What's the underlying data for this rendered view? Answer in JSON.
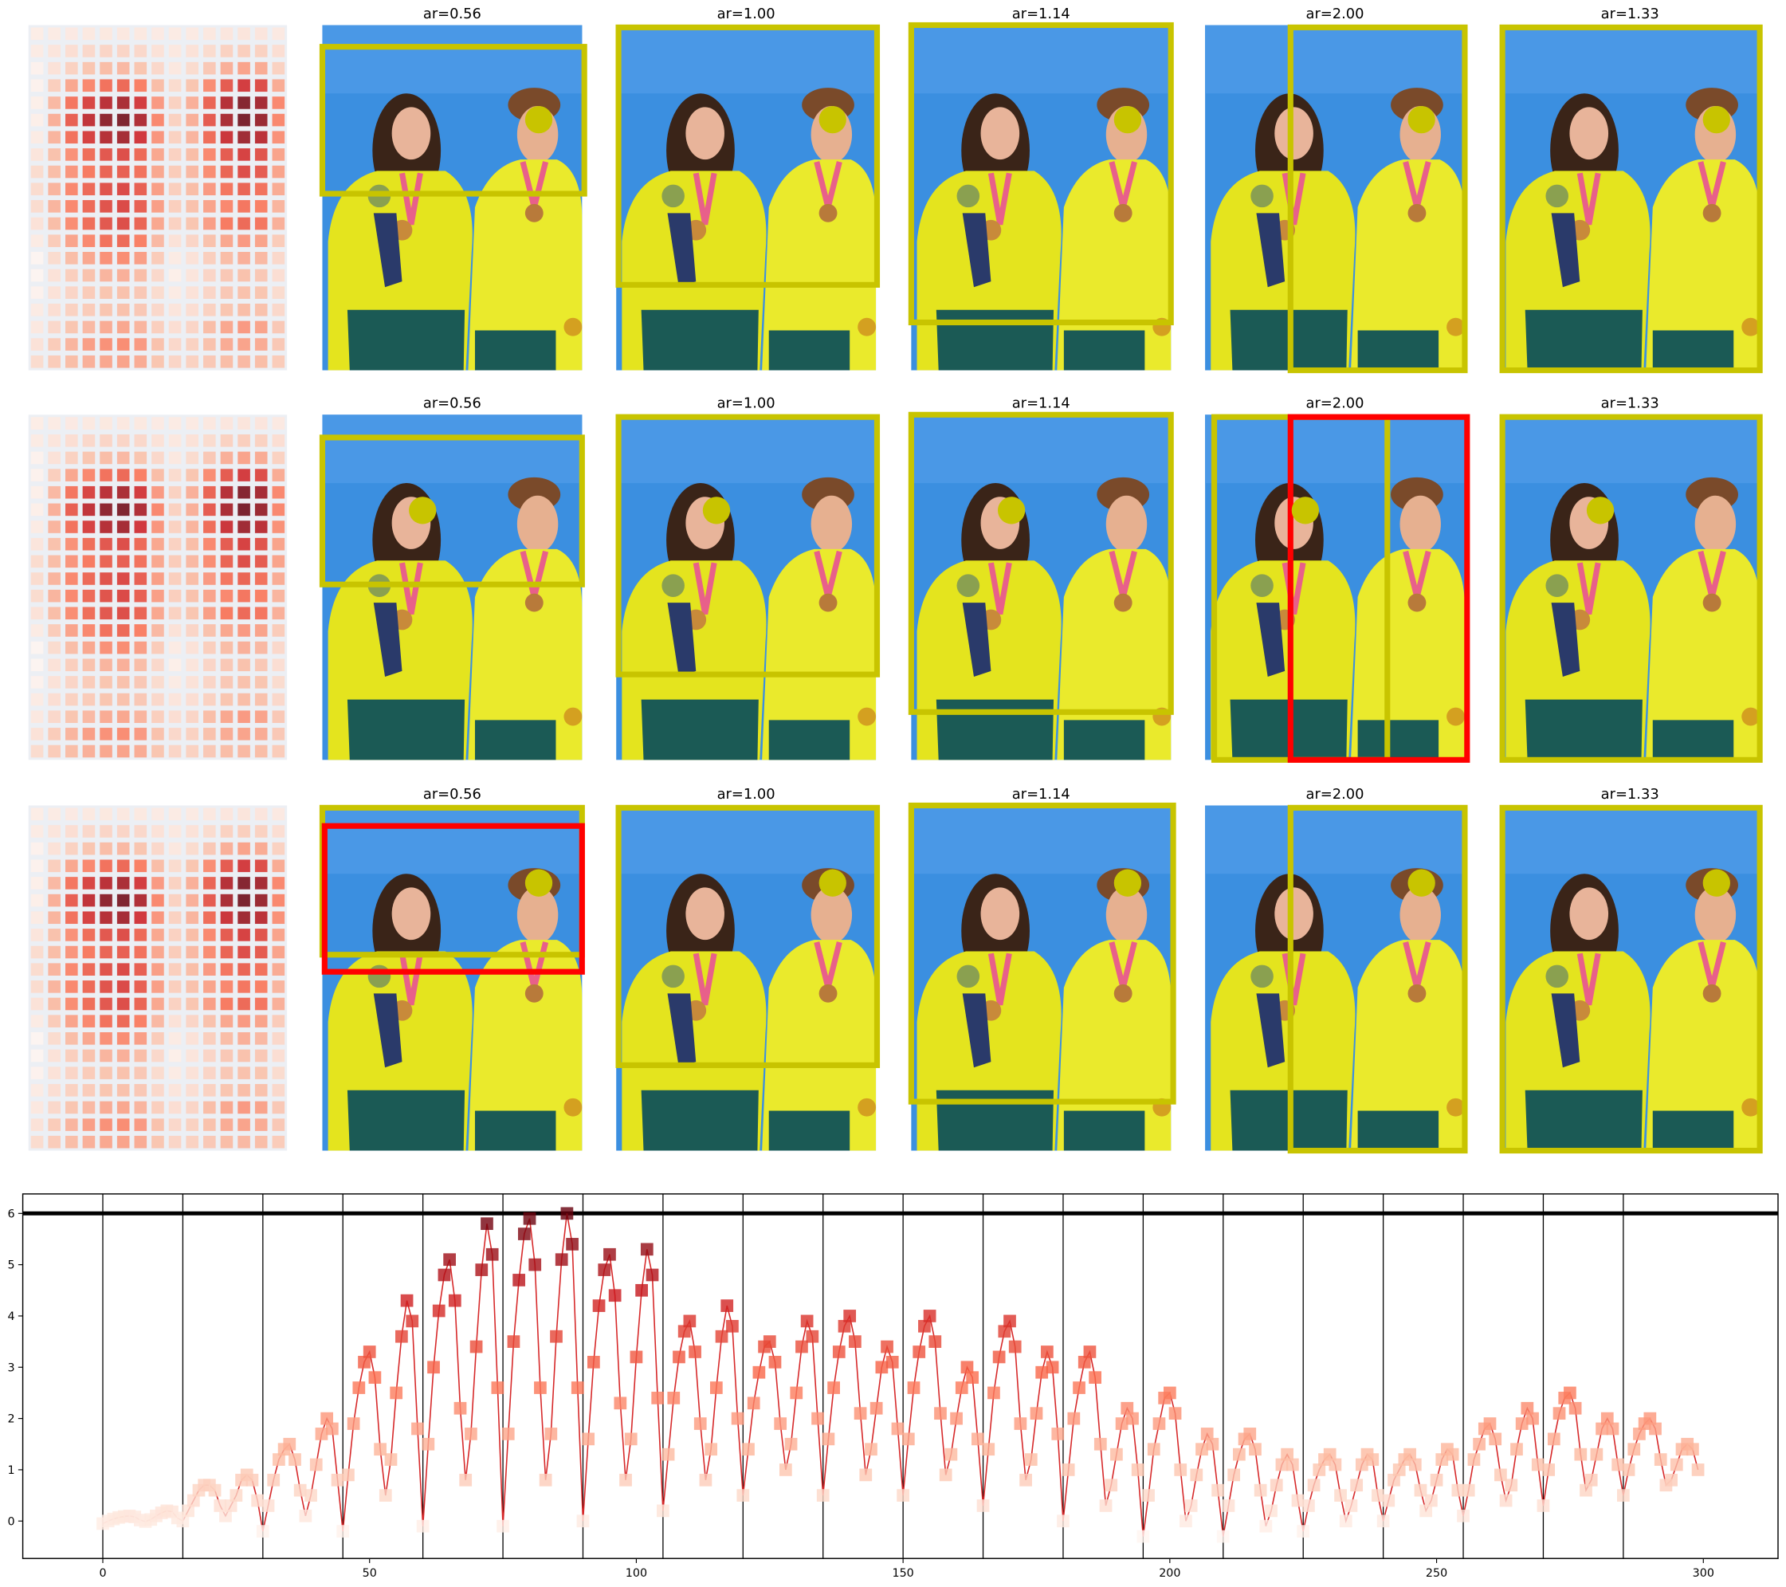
{
  "image_grid": {
    "rows": [
      {
        "titles": [
          "ar=0.56",
          "ar=1.00",
          "ar=1.14",
          "ar=2.00",
          "ar=1.33"
        ]
      },
      {
        "titles": [
          "ar=0.56",
          "ar=1.00",
          "ar=1.14",
          "ar=2.00",
          "ar=1.33"
        ]
      },
      {
        "titles": [
          "ar=0.56",
          "ar=1.00",
          "ar=1.14",
          "ar=2.00",
          "ar=1.33"
        ]
      }
    ]
  },
  "chart_data": {
    "type": "line",
    "x": [
      0,
      1,
      2,
      3,
      4,
      5,
      6,
      7,
      8,
      9,
      10,
      11,
      12,
      13,
      14,
      15,
      16,
      17,
      18,
      19,
      20,
      21,
      22,
      23,
      24,
      25,
      26,
      27,
      28,
      29,
      30,
      31,
      32,
      33,
      34,
      35,
      36,
      37,
      38,
      39,
      40,
      41,
      42,
      43,
      44,
      45,
      46,
      47,
      48,
      49,
      50,
      51,
      52,
      53,
      54,
      55,
      56,
      57,
      58,
      59,
      60,
      61,
      62,
      63,
      64,
      65,
      66,
      67,
      68,
      69,
      70,
      71,
      72,
      73,
      74,
      75,
      76,
      77,
      78,
      79,
      80,
      81,
      82,
      83,
      84,
      85,
      86,
      87,
      88,
      89,
      90,
      91,
      92,
      93,
      94,
      95,
      96,
      97,
      98,
      99,
      100,
      101,
      102,
      103,
      104,
      105,
      106,
      107,
      108,
      109,
      110,
      111,
      112,
      113,
      114,
      115,
      116,
      117,
      118,
      119,
      120,
      121,
      122,
      123,
      124,
      125,
      126,
      127,
      128,
      129,
      130,
      131,
      132,
      133,
      134,
      135,
      136,
      137,
      138,
      139,
      140,
      141,
      142,
      143,
      144,
      145,
      146,
      147,
      148,
      149,
      150,
      151,
      152,
      153,
      154,
      155,
      156,
      157,
      158,
      159,
      160,
      161,
      162,
      163,
      164,
      165,
      166,
      167,
      168,
      169,
      170,
      171,
      172,
      173,
      174,
      175,
      176,
      177,
      178,
      179,
      180,
      181,
      182,
      183,
      184,
      185,
      186,
      187,
      188,
      189,
      190,
      191,
      192,
      193,
      194,
      195,
      196,
      197,
      198,
      199,
      200,
      201,
      202,
      203,
      204,
      205,
      206,
      207,
      208,
      209,
      210,
      211,
      212,
      213,
      214,
      215,
      216,
      217,
      218,
      219,
      220,
      221,
      222,
      223,
      224,
      225,
      226,
      227,
      228,
      229,
      230,
      231,
      232,
      233,
      234,
      235,
      236,
      237,
      238,
      239,
      240,
      241,
      242,
      243,
      244,
      245,
      246,
      247,
      248,
      249,
      250,
      251,
      252,
      253,
      254,
      255,
      256,
      257,
      258,
      259,
      260,
      261,
      262,
      263,
      264,
      265,
      266,
      267,
      268,
      269,
      270,
      271,
      272,
      273,
      274,
      275,
      276,
      277,
      278,
      279,
      280,
      281,
      282,
      283,
      284,
      285,
      286,
      287,
      288,
      289,
      290,
      291,
      292,
      293,
      294,
      295,
      296,
      297,
      298,
      299
    ],
    "values": [
      -0.05,
      0,
      0.04,
      0.07,
      0.09,
      0.1,
      0.08,
      0.02,
      -0.01,
      0.03,
      0.1,
      0.16,
      0.2,
      0.18,
      0.06,
      0,
      0.2,
      0.4,
      0.6,
      0.7,
      0.7,
      0.6,
      0.3,
      0.1,
      0.3,
      0.5,
      0.8,
      0.9,
      0.8,
      0.4,
      -0.2,
      0.3,
      0.8,
      1.2,
      1.4,
      1.5,
      1.2,
      0.6,
      0.1,
      0.5,
      1.1,
      1.7,
      2.0,
      1.8,
      0.8,
      -0.2,
      0.9,
      1.9,
      2.6,
      3.1,
      3.3,
      2.8,
      1.4,
      0.5,
      1.2,
      2.5,
      3.6,
      4.3,
      3.9,
      1.8,
      -0.1,
      1.5,
      3.0,
      4.1,
      4.8,
      5.1,
      4.3,
      2.2,
      0.8,
      1.7,
      3.4,
      4.9,
      5.8,
      5.2,
      2.6,
      -0.1,
      1.7,
      3.5,
      4.7,
      5.6,
      5.9,
      5.0,
      2.6,
      0.8,
      1.7,
      3.6,
      5.1,
      6.0,
      5.4,
      2.6,
      0,
      1.6,
      3.1,
      4.2,
      4.9,
      5.2,
      4.4,
      2.3,
      0.8,
      1.6,
      3.2,
      4.5,
      5.3,
      4.8,
      2.4,
      0.2,
      1.3,
      2.4,
      3.2,
      3.7,
      3.9,
      3.3,
      1.9,
      0.8,
      1.4,
      2.6,
      3.6,
      4.2,
      3.8,
      2.0,
      0.5,
      1.4,
      2.3,
      2.9,
      3.4,
      3.5,
      3.1,
      1.9,
      1.0,
      1.5,
      2.5,
      3.4,
      3.9,
      3.6,
      2.0,
      0.5,
      1.6,
      2.6,
      3.3,
      3.8,
      4.0,
      3.5,
      2.1,
      0.9,
      1.4,
      2.2,
      3.0,
      3.4,
      3.1,
      1.8,
      0.5,
      1.6,
      2.6,
      3.3,
      3.8,
      4.0,
      3.5,
      2.1,
      0.9,
      1.3,
      2.0,
      2.6,
      3.0,
      2.8,
      1.6,
      0.3,
      1.4,
      2.5,
      3.2,
      3.7,
      3.9,
      3.4,
      1.9,
      0.8,
      1.2,
      2.1,
      2.9,
      3.3,
      3.0,
      1.7,
      0,
      1.0,
      2.0,
      2.6,
      3.1,
      3.3,
      2.8,
      1.5,
      0.3,
      0.7,
      1.3,
      1.9,
      2.2,
      2.0,
      1.0,
      -0.3,
      0.5,
      1.4,
      1.9,
      2.4,
      2.5,
      2.1,
      1.0,
      0,
      0.3,
      0.9,
      1.4,
      1.7,
      1.5,
      0.6,
      -0.3,
      0.3,
      0.9,
      1.3,
      1.6,
      1.7,
      1.4,
      0.6,
      -0.1,
      0.2,
      0.7,
      1.1,
      1.3,
      1.1,
      0.4,
      -0.2,
      0.3,
      0.7,
      1.0,
      1.2,
      1.3,
      1.1,
      0.5,
      0,
      0.3,
      0.7,
      1.1,
      1.3,
      1.2,
      0.5,
      0,
      0.4,
      0.8,
      1.0,
      1.2,
      1.3,
      1.1,
      0.6,
      0.2,
      0.4,
      0.8,
      1.2,
      1.4,
      1.3,
      0.6,
      0.1,
      0.6,
      1.2,
      1.5,
      1.8,
      1.9,
      1.6,
      0.9,
      0.4,
      0.7,
      1.4,
      1.9,
      2.2,
      2.0,
      1.1,
      0.3,
      1.0,
      1.6,
      2.1,
      2.4,
      2.5,
      2.2,
      1.3,
      0.6,
      0.8,
      1.3,
      1.8,
      2.0,
      1.8,
      1.1,
      0.5,
      1.0,
      1.4,
      1.7,
      1.9,
      2.0,
      1.8,
      1.2,
      0.7,
      0.8,
      1.1,
      1.4,
      1.5,
      1.4,
      1.0
    ],
    "line_color": "#d62728",
    "colors": [
      "#fff5f0",
      "#fcbba1",
      "#fb6a4a",
      "#cb181d",
      "#67000d"
    ],
    "xlim": [
      -15,
      314
    ],
    "ylim": [
      -0.73,
      6.38
    ],
    "xticks": [
      0,
      50,
      100,
      150,
      200,
      250,
      300
    ],
    "yticks": [
      0,
      1,
      2,
      3,
      4,
      5,
      6
    ],
    "vlines": [
      0,
      15,
      30,
      45,
      60,
      75,
      90,
      105,
      120,
      135,
      150,
      165,
      180,
      195,
      210,
      225,
      240,
      255,
      270,
      285
    ],
    "hline": 6
  }
}
